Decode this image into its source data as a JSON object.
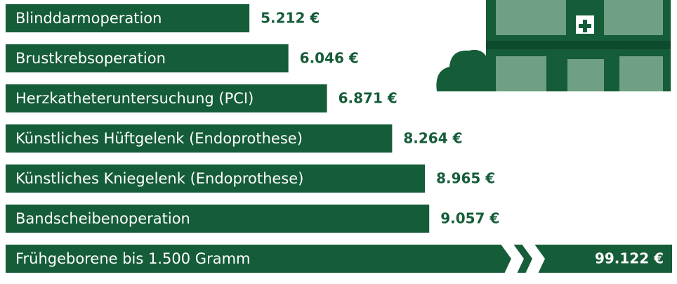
{
  "chart_data": {
    "type": "bar",
    "orientation": "horizontal",
    "categories": [
      "Blinddarmoperation",
      "Brustkrebsoperation",
      "Herzkatheteruntersuchung (PCI)",
      "Künstliches Hüftgelenk (Endoprothese)",
      "Künstliches Kniegelenk (Endoprothese)",
      "Bandscheibenoperation",
      "Frühgeborene bis 1.500 Gramm"
    ],
    "values": [
      5212,
      6046,
      6871,
      8264,
      8965,
      9057,
      99122
    ],
    "value_labels": [
      "5.212 €",
      "6.046 €",
      "6.871 €",
      "8.264 €",
      "8.965 €",
      "9.057 €",
      "99.122 €"
    ],
    "color": "#155c38"
  }
}
